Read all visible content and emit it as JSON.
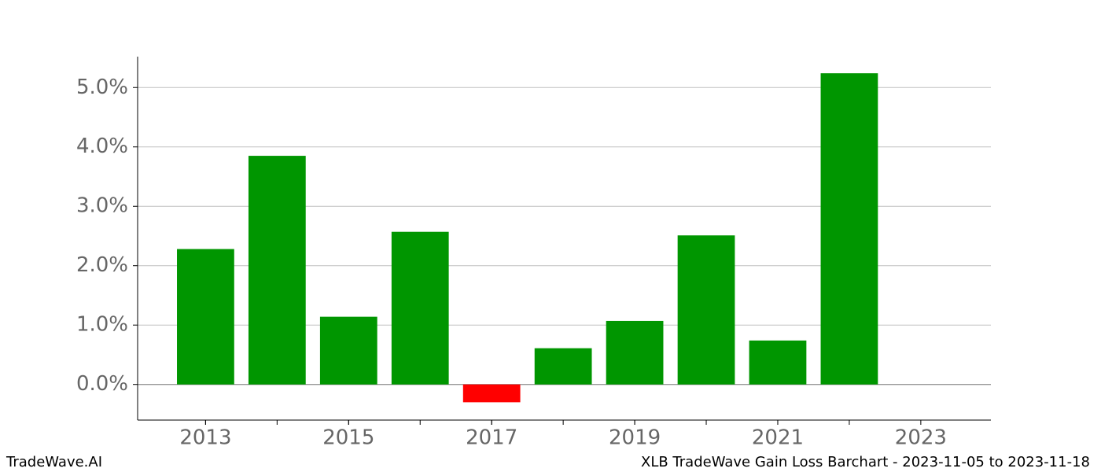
{
  "chart_data": {
    "type": "bar",
    "title": "XLB TradeWave Gain Loss Barchart - 2023-11-05 to 2023-11-18",
    "source": "TradeWave.AI",
    "x": [
      2013,
      2014,
      2015,
      2016,
      2017,
      2018,
      2019,
      2020,
      2021,
      2022
    ],
    "values": [
      2.28,
      3.85,
      1.14,
      2.57,
      -0.3,
      0.61,
      1.07,
      2.51,
      0.74,
      5.24
    ],
    "color": "#009600",
    "negative_color": "#ff0000",
    "xlim": [
      2012.05,
      2023.98
    ],
    "xticks": [
      2013,
      2015,
      2017,
      2019,
      2021,
      2023
    ],
    "ylim": [
      -0.6,
      5.52
    ],
    "yticks": [
      {
        "value": 0,
        "label": "0.0%"
      },
      {
        "value": 1,
        "label": "1.0%"
      },
      {
        "value": 2,
        "label": "2.0%"
      },
      {
        "value": 3,
        "label": "3.0%"
      },
      {
        "value": 4,
        "label": "4.0%"
      },
      {
        "value": 5,
        "label": "5.0%"
      }
    ],
    "grid": true
  }
}
